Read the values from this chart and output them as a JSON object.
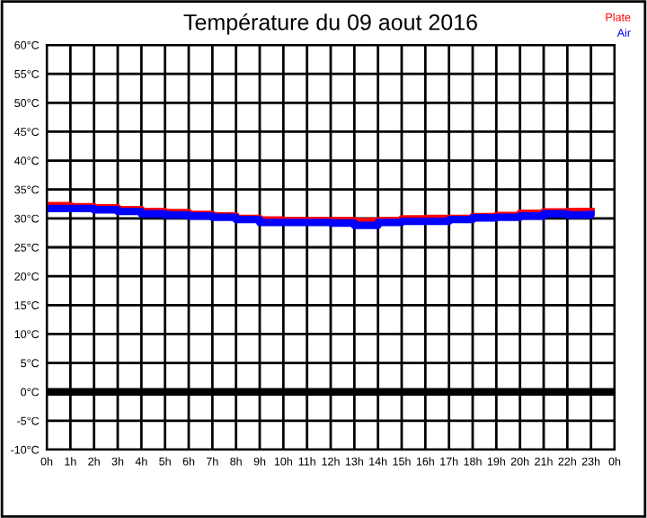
{
  "chart_data": {
    "type": "step",
    "title": "Température du 09 aout 2016",
    "x": [
      "2016-08-09T00:00",
      "2016-08-09T01:00",
      "2016-08-09T02:00",
      "2016-08-09T03:00",
      "2016-08-09T04:00",
      "2016-08-09T05:00",
      "2016-08-09T06:00",
      "2016-08-09T07:00",
      "2016-08-09T08:00",
      "2016-08-09T09:00",
      "2016-08-09T10:00",
      "2016-08-09T11:00",
      "2016-08-09T12:00",
      "2016-08-09T13:00",
      "2016-08-09T14:00",
      "2016-08-09T15:00",
      "2016-08-09T16:00",
      "2016-08-09T17:00",
      "2016-08-09T18:00",
      "2016-08-09T19:00",
      "2016-08-09T20:00",
      "2016-08-09T21:00",
      "2016-08-09T22:00",
      "2016-08-09T23:00"
    ],
    "series": [
      {
        "name": "Plate",
        "color": "#ff0000",
        "values": [
          32.2,
          32,
          31.8,
          31.5,
          31.2,
          31,
          30.7,
          30.4,
          30,
          29.7,
          29.6,
          29.6,
          29.6,
          29.5,
          29.6,
          29.9,
          30,
          30,
          30.3,
          30.5,
          30.9,
          31.1,
          31.2,
          31.2
        ]
      },
      {
        "name": "Air",
        "color": "#0000ff",
        "values": [
          31.7,
          31.7,
          31.5,
          31.2,
          30.8,
          30.6,
          30.4,
          30.2,
          29.8,
          29.3,
          29.3,
          29.3,
          29.2,
          28.8,
          29.3,
          29.5,
          29.5,
          29.8,
          30.1,
          30.2,
          30.4,
          30.8,
          30.6,
          30.7
        ]
      }
    ],
    "xlim": [
      "2016-08-09T00:00",
      "2016-08-10T00:00"
    ],
    "xticks": [
      {
        "value": "2016-08-09T00:00",
        "label": "0h"
      },
      {
        "value": "2016-08-09T01:00",
        "label": "1h"
      },
      {
        "value": "2016-08-09T02:00",
        "label": "2h"
      },
      {
        "value": "2016-08-09T03:00",
        "label": "3h"
      },
      {
        "value": "2016-08-09T04:00",
        "label": "4h"
      },
      {
        "value": "2016-08-09T05:00",
        "label": "5h"
      },
      {
        "value": "2016-08-09T06:00",
        "label": "6h"
      },
      {
        "value": "2016-08-09T07:00",
        "label": "7h"
      },
      {
        "value": "2016-08-09T08:00",
        "label": "8h"
      },
      {
        "value": "2016-08-09T09:00",
        "label": "9h"
      },
      {
        "value": "2016-08-09T10:00",
        "label": "10h"
      },
      {
        "value": "2016-08-09T11:00",
        "label": "11h"
      },
      {
        "value": "2016-08-09T12:00",
        "label": "12h"
      },
      {
        "value": "2016-08-09T13:00",
        "label": "13h"
      },
      {
        "value": "2016-08-09T14:00",
        "label": "14h"
      },
      {
        "value": "2016-08-09T15:00",
        "label": "15h"
      },
      {
        "value": "2016-08-09T16:00",
        "label": "16h"
      },
      {
        "value": "2016-08-09T17:00",
        "label": "17h"
      },
      {
        "value": "2016-08-09T18:00",
        "label": "18h"
      },
      {
        "value": "2016-08-09T19:00",
        "label": "19h"
      },
      {
        "value": "2016-08-09T20:00",
        "label": "20h"
      },
      {
        "value": "2016-08-09T21:00",
        "label": "21h"
      },
      {
        "value": "2016-08-09T22:00",
        "label": "22h"
      },
      {
        "value": "2016-08-09T23:00",
        "label": "23h"
      },
      {
        "value": "2016-08-10T00:00",
        "label": "0h"
      }
    ],
    "ylim": [
      -10,
      60
    ],
    "yticks": [
      {
        "value": -10,
        "label": "-10°C"
      },
      {
        "value": -5,
        "label": "-5°C"
      },
      {
        "value": 0,
        "label": "0°C"
      },
      {
        "value": 5,
        "label": "5°C"
      },
      {
        "value": 10,
        "label": "10°C"
      },
      {
        "value": 15,
        "label": "15°C"
      },
      {
        "value": 20,
        "label": "20°C"
      },
      {
        "value": 25,
        "label": "25°C"
      },
      {
        "value": 30,
        "label": "30°C"
      },
      {
        "value": 35,
        "label": "35°C"
      },
      {
        "value": 40,
        "label": "40°C"
      },
      {
        "value": 45,
        "label": "45°C"
      },
      {
        "value": 50,
        "label": "50°C"
      },
      {
        "value": 55,
        "label": "55°C"
      },
      {
        "value": 60,
        "label": "60°C"
      }
    ],
    "ref_lines": [
      {
        "axis": "y",
        "value": 0,
        "color": "#000000"
      }
    ],
    "grid": true,
    "legend": "top right"
  }
}
